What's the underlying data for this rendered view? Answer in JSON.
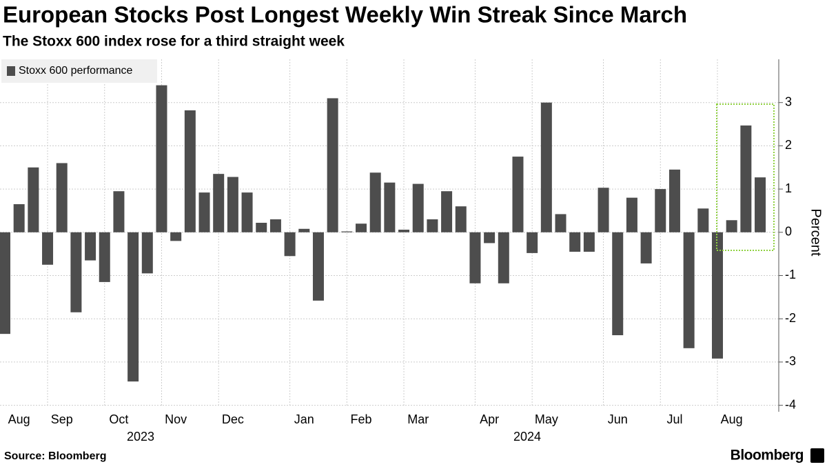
{
  "chart_data": {
    "type": "bar",
    "title": "European Stocks Post Longest Weekly Win Streak Since March",
    "subtitle": "The Stoxx 600 index rose for a third straight week",
    "y_axis_label": "Percent",
    "source": "Source: Bloomberg",
    "brand": "Bloomberg",
    "year_labels": [
      "2023",
      "2024"
    ],
    "categories": [
      null,
      "Aug",
      null,
      null,
      "Sep",
      null,
      null,
      null,
      "Oct",
      null,
      null,
      null,
      "Nov",
      null,
      null,
      null,
      "Dec",
      null,
      null,
      null,
      null,
      "Jan",
      null,
      null,
      null,
      "Feb",
      null,
      null,
      null,
      "Mar",
      null,
      null,
      null,
      null,
      "Apr",
      null,
      null,
      null,
      "May",
      null,
      null,
      null,
      null,
      "Jun",
      null,
      null,
      null,
      "Jul",
      null,
      null,
      null,
      "Aug",
      null,
      null
    ],
    "series": [
      {
        "name": "Stoxx 600 performance",
        "color": "#4d4d4d",
        "values": [
          -2.35,
          0.65,
          1.5,
          -0.75,
          1.6,
          -1.85,
          -0.65,
          -1.15,
          0.95,
          -3.45,
          -0.95,
          3.4,
          -0.2,
          2.82,
          0.92,
          1.35,
          1.28,
          0.92,
          0.22,
          0.3,
          -0.55,
          0.08,
          -1.58,
          3.1,
          0.02,
          0.2,
          1.38,
          1.15,
          0.06,
          1.12,
          0.3,
          0.95,
          0.6,
          -1.18,
          -0.25,
          -1.18,
          1.75,
          -0.48,
          3.0,
          0.42,
          -0.45,
          -0.45,
          1.03,
          -2.38,
          0.8,
          -0.72,
          1.0,
          1.45,
          -2.68,
          0.55,
          -2.92,
          0.28,
          2.47,
          1.27
        ]
      }
    ],
    "ylim": [
      -4.15,
      4
    ],
    "yticks": [
      -4,
      -3,
      -2,
      -1,
      0,
      1,
      2,
      3
    ],
    "grid": true,
    "legend": "top-left"
  }
}
